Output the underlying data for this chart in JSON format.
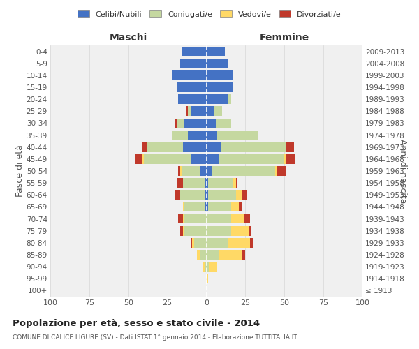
{
  "age_groups": [
    "100+",
    "95-99",
    "90-94",
    "85-89",
    "80-84",
    "75-79",
    "70-74",
    "65-69",
    "60-64",
    "55-59",
    "50-54",
    "45-49",
    "40-44",
    "35-39",
    "30-34",
    "25-29",
    "20-24",
    "15-19",
    "10-14",
    "5-9",
    "0-4"
  ],
  "birth_years": [
    "≤ 1913",
    "1914-1918",
    "1919-1923",
    "1924-1928",
    "1929-1933",
    "1934-1938",
    "1939-1943",
    "1944-1948",
    "1949-1953",
    "1954-1958",
    "1959-1963",
    "1964-1968",
    "1969-1973",
    "1974-1978",
    "1979-1983",
    "1984-1988",
    "1989-1993",
    "1994-1998",
    "1999-2003",
    "2004-2008",
    "2009-2013"
  ],
  "maschi": {
    "celibi": [
      0,
      0,
      0,
      0,
      0,
      0,
      0,
      1,
      1,
      1,
      4,
      10,
      15,
      12,
      14,
      10,
      18,
      19,
      22,
      17,
      16
    ],
    "coniugati": [
      0,
      0,
      1,
      4,
      8,
      14,
      14,
      13,
      16,
      14,
      12,
      30,
      23,
      10,
      5,
      2,
      0,
      0,
      0,
      0,
      0
    ],
    "vedovi": [
      0,
      0,
      1,
      2,
      1,
      1,
      1,
      1,
      0,
      0,
      1,
      1,
      0,
      0,
      0,
      0,
      0,
      0,
      0,
      0,
      0
    ],
    "divorziati": [
      0,
      0,
      0,
      0,
      1,
      2,
      3,
      0,
      3,
      4,
      1,
      5,
      3,
      0,
      1,
      1,
      0,
      0,
      0,
      0,
      0
    ]
  },
  "femmine": {
    "nubili": [
      0,
      0,
      0,
      0,
      0,
      0,
      0,
      1,
      1,
      1,
      4,
      8,
      9,
      7,
      6,
      5,
      14,
      17,
      17,
      14,
      12
    ],
    "coniugate": [
      0,
      0,
      2,
      8,
      14,
      16,
      16,
      15,
      18,
      16,
      40,
      42,
      42,
      26,
      10,
      5,
      2,
      0,
      0,
      0,
      0
    ],
    "vedove": [
      0,
      1,
      5,
      15,
      14,
      11,
      8,
      5,
      4,
      2,
      1,
      1,
      0,
      0,
      0,
      0,
      0,
      0,
      0,
      0,
      0
    ],
    "divorziate": [
      0,
      0,
      0,
      2,
      2,
      2,
      4,
      2,
      3,
      1,
      6,
      6,
      5,
      0,
      0,
      0,
      0,
      0,
      0,
      0,
      0
    ]
  },
  "color_celibi": "#4472c4",
  "color_coniugati": "#c5d8a0",
  "color_vedovi": "#ffd966",
  "color_divorziati": "#c0392b",
  "xlim": 100,
  "title": "Popolazione per età, sesso e stato civile - 2014",
  "subtitle": "COMUNE DI CALICE LIGURE (SV) - Dati ISTAT 1° gennaio 2014 - Elaborazione TUTTITALIA.IT",
  "ylabel_left": "Fasce di età",
  "ylabel_right": "Anni di nascita",
  "xlabel_left": "Maschi",
  "xlabel_right": "Femmine",
  "bg_color": "#ffffff",
  "plot_bg": "#f0f0f0",
  "grid_color": "#cccccc"
}
